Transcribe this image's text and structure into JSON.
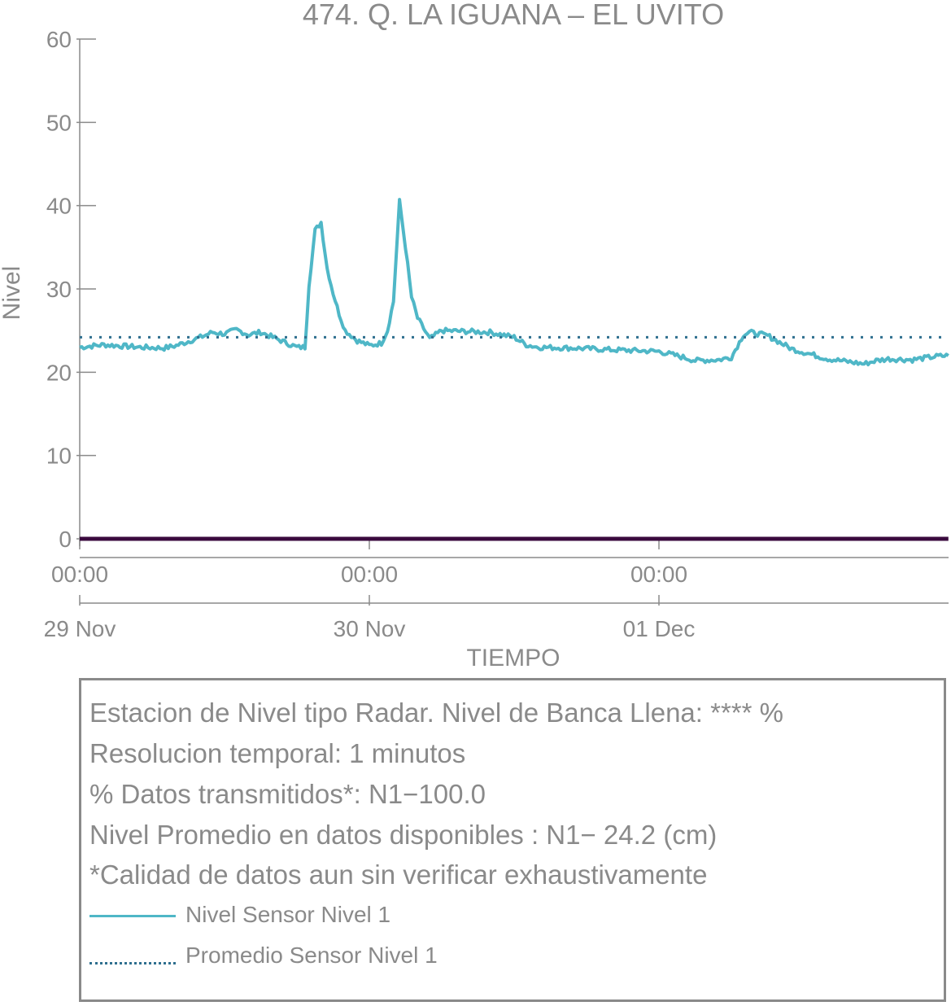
{
  "chart_data": {
    "type": "line",
    "title": "474. Q. LA IGUANA – EL UVITO",
    "xlabel": "TIEMPO",
    "ylabel": "Nivel",
    "ylim": [
      0,
      60
    ],
    "yticks": [
      0,
      10,
      20,
      30,
      40,
      50,
      60
    ],
    "xticks": [
      {
        "time": "00:00",
        "date": "29 Nov"
      },
      {
        "time": "00:00",
        "date": "30 Nov"
      },
      {
        "time": "00:00",
        "date": "01 Dec"
      }
    ],
    "xlim": [
      "2023-11-29T00:00",
      "2023-12-01T23:59"
    ],
    "grid": false,
    "series": [
      {
        "name": "Nivel Sensor Nivel 1",
        "color": "#4fb7c7",
        "style": "solid",
        "x": [
          "2023-11-29T00:00",
          "2023-11-29T02:00",
          "2023-11-29T05:00",
          "2023-11-29T07:00",
          "2023-11-29T08:00",
          "2023-11-29T10:00",
          "2023-11-29T11:00",
          "2023-11-29T12:00",
          "2023-11-29T13:00",
          "2023-11-29T14:00",
          "2023-11-29T15:00",
          "2023-11-29T16:00",
          "2023-11-29T17:00",
          "2023-11-29T18:00",
          "2023-11-29T18:40",
          "2023-11-29T19:00",
          "2023-11-29T19:30",
          "2023-11-29T20:00",
          "2023-11-29T20:30",
          "2023-11-29T21:00",
          "2023-11-29T21:30",
          "2023-11-29T22:00",
          "2023-11-29T23:00",
          "2023-11-30T00:00",
          "2023-11-30T01:00",
          "2023-11-30T01:30",
          "2023-11-30T02:00",
          "2023-11-30T02:30",
          "2023-11-30T03:00",
          "2023-11-30T03:30",
          "2023-11-30T04:00",
          "2023-11-30T05:00",
          "2023-11-30T06:00",
          "2023-11-30T08:00",
          "2023-11-30T10:00",
          "2023-11-30T12:00",
          "2023-11-30T13:00",
          "2023-11-30T14:00",
          "2023-11-30T17:00",
          "2023-11-30T20:00",
          "2023-12-01T00:00",
          "2023-12-01T02:00",
          "2023-12-01T03:00",
          "2023-12-01T05:00",
          "2023-12-01T06:00",
          "2023-12-01T07:00",
          "2023-12-01T07:30",
          "2023-12-01T09:00",
          "2023-12-01T11:00",
          "2023-12-01T14:00",
          "2023-12-01T17:00",
          "2023-12-01T18:00",
          "2023-12-01T19:00",
          "2023-12-01T21:00",
          "2023-12-01T23:00",
          "2023-12-01T23:59"
        ],
        "values": [
          23.0,
          23.3,
          23.0,
          22.9,
          23.2,
          24.2,
          24.8,
          24.6,
          25.1,
          24.5,
          24.8,
          24.2,
          23.6,
          23.0,
          23.0,
          30.5,
          37.0,
          38.0,
          32.5,
          29.5,
          27.0,
          25.0,
          23.8,
          23.2,
          23.5,
          25.0,
          28.5,
          40.5,
          35.0,
          29.0,
          26.5,
          24.0,
          25.0,
          24.9,
          24.8,
          24.2,
          23.3,
          23.0,
          22.9,
          22.7,
          22.5,
          21.8,
          21.4,
          21.5,
          21.8,
          24.5,
          24.8,
          24.4,
          22.8,
          21.6,
          21.0,
          21.4,
          21.6,
          21.5,
          21.9,
          22.0
        ]
      },
      {
        "name": "Promedio Sensor Nivel 1",
        "color": "#2f6f8f",
        "style": "dotted",
        "x": [
          "2023-11-29T00:00",
          "2023-12-01T23:59"
        ],
        "values": [
          24.2,
          24.2
        ]
      },
      {
        "name": "",
        "color": "#3a0a3e",
        "style": "solid",
        "x": [
          "2023-11-29T00:00",
          "2023-12-01T23:59"
        ],
        "values": [
          0,
          0
        ]
      }
    ]
  },
  "info": {
    "lines": [
      "Estacion de Nivel tipo Radar. Nivel de Banca Llena: **** %",
      "Resolucion temporal: 1 minutos",
      "% Datos transmitidos*: N1−100.0",
      "Nivel Promedio en datos disponibles : N1− 24.2 (cm)",
      "*Calidad de datos aun sin verificar exhaustivamente"
    ],
    "legend": [
      {
        "label": "Nivel Sensor Nivel 1",
        "color": "#4fb7c7",
        "style": "solid"
      },
      {
        "label": "Promedio Sensor Nivel 1",
        "color": "#2f6f8f",
        "style": "dotted"
      }
    ]
  },
  "colors": {
    "axis": "#8a8a8a",
    "text": "#8a8a8a"
  }
}
